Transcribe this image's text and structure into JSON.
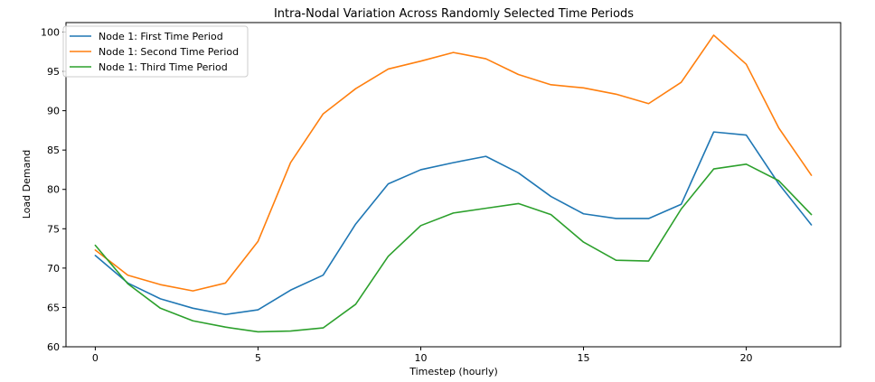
{
  "chart_data": {
    "type": "line",
    "title": "Intra-Nodal Variation Across Randomly Selected Time Periods",
    "xlabel": "Timestep (hourly)",
    "ylabel": "Load Demand",
    "x": [
      0,
      1,
      2,
      3,
      4,
      5,
      6,
      7,
      8,
      9,
      10,
      11,
      12,
      13,
      14,
      15,
      16,
      17,
      18,
      19,
      20,
      21,
      22
    ],
    "xlim": [
      -0.9,
      22.9
    ],
    "ylim": [
      60,
      101.2
    ],
    "xticks": [
      0,
      5,
      10,
      15,
      20
    ],
    "yticks": [
      60,
      65,
      70,
      75,
      80,
      85,
      90,
      95,
      100
    ],
    "grid": false,
    "legend_position": "top-left",
    "series": [
      {
        "name": "Node 1: First Time Period",
        "color": "#1f77b4",
        "values": [
          71.6,
          68.1,
          66.1,
          64.9,
          64.1,
          64.7,
          67.2,
          69.1,
          75.6,
          80.7,
          82.5,
          83.4,
          84.2,
          82.1,
          79.1,
          76.9,
          76.3,
          76.3,
          78.1,
          87.3,
          86.9,
          80.7,
          75.5
        ]
      },
      {
        "name": "Node 1: Second Time Period",
        "color": "#ff7f0e",
        "values": [
          72.3,
          69.1,
          67.9,
          67.1,
          68.1,
          73.4,
          83.4,
          89.6,
          92.8,
          95.3,
          96.3,
          97.4,
          96.6,
          94.6,
          93.3,
          92.9,
          92.1,
          90.9,
          93.6,
          99.6,
          95.9,
          87.8,
          81.8
        ]
      },
      {
        "name": "Node 1: Third Time Period",
        "color": "#2ca02c",
        "values": [
          72.9,
          68.0,
          64.9,
          63.3,
          62.5,
          61.9,
          62.0,
          62.4,
          65.4,
          71.5,
          75.4,
          77.0,
          77.6,
          78.2,
          76.8,
          73.3,
          71.0,
          70.9,
          77.5,
          82.6,
          83.2,
          81.1,
          76.8
        ]
      }
    ]
  }
}
